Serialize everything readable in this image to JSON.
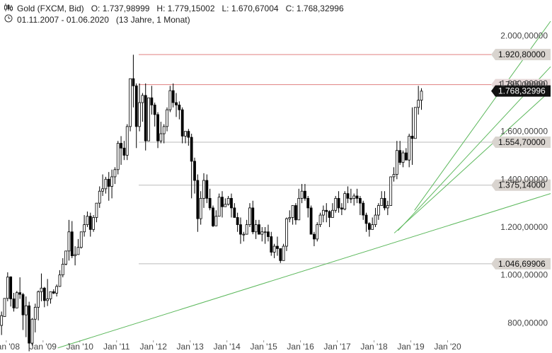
{
  "header": {
    "instrument": "Gold (FXCM, Bid)",
    "open": "O: 1.737,98999",
    "high": "H: 1.779,15002",
    "low": "L: 1.670,67004",
    "close": "C: 1.768,32996",
    "range": "01.11.2007 - 01.06.2020",
    "duration": "(13 Jahre, 1 Monat)"
  },
  "chart_data": {
    "type": "candlestick",
    "yaxis": {
      "ticks": [
        {
          "value": 800,
          "label": "800,00000"
        },
        {
          "value": 1000,
          "label": "1.000,00000"
        },
        {
          "value": 1200,
          "label": "1.200,00000"
        },
        {
          "value": 1400,
          "label": "1.400,00000"
        },
        {
          "value": 1600,
          "label": "1.600,00000"
        },
        {
          "value": 1800,
          "label": "1.800,00000"
        },
        {
          "value": 2000,
          "label": "2.000,00000"
        }
      ],
      "ylim": [
        730,
        2060
      ]
    },
    "xaxis": {
      "ticks": [
        {
          "value": 2008.0,
          "label": "Jan '08"
        },
        {
          "value": 2009.0,
          "label": "Jan '09"
        },
        {
          "value": 2010.0,
          "label": "Jan '10"
        },
        {
          "value": 2011.0,
          "label": "Jan '11"
        },
        {
          "value": 2012.0,
          "label": "Jan '12"
        },
        {
          "value": 2013.0,
          "label": "Jan '13"
        },
        {
          "value": 2014.0,
          "label": "Jan '14"
        },
        {
          "value": 2015.0,
          "label": "Jan '15"
        },
        {
          "value": 2016.0,
          "label": "Jan '16"
        },
        {
          "value": 2017.0,
          "label": "Jan '17"
        },
        {
          "value": 2018.0,
          "label": "Jan '18"
        },
        {
          "value": 2019.0,
          "label": "Jan '19"
        },
        {
          "value": 2020.0,
          "label": "Jan '20"
        }
      ],
      "xlim": [
        2007.83,
        2022.8
      ]
    },
    "price_levels": [
      {
        "value": 1920.8,
        "label": "1.920,80000",
        "color": "#e08080"
      },
      {
        "value": 1795.0,
        "label": "1.795,00000",
        "color": "#e08080"
      },
      {
        "value": 1554.7,
        "label": "1.554,70000",
        "color": "#bbbbbb"
      },
      {
        "value": 1375.14,
        "label": "1.375,14000",
        "color": "#bbbbbb"
      },
      {
        "value": 1046.69906,
        "label": "1.046,69906",
        "color": "#bbbbbb"
      }
    ],
    "current": {
      "value": 1768.32996,
      "label": "1.768,32996"
    },
    "trendlines": [
      {
        "x1": 2009.4,
        "y1": 695,
        "x2": 2022.8,
        "y2": 1340
      },
      {
        "x1": 2018.55,
        "y1": 1175,
        "x2": 2022.8,
        "y2": 1770
      },
      {
        "x1": 2018.65,
        "y1": 1185,
        "x2": 2022.8,
        "y2": 1870
      },
      {
        "x1": 2019.1,
        "y1": 1270,
        "x2": 2022.8,
        "y2": 2060
      }
    ],
    "series": [
      {
        "values": [
          [
            789,
            847,
            749,
            830
          ],
          [
            826,
            900,
            837,
            902
          ],
          [
            902,
            1011,
            890,
            991
          ],
          [
            992,
            994,
            868,
            900
          ],
          [
            900,
            925,
            847,
            862
          ],
          [
            862,
            933,
            902,
            926
          ],
          [
            926,
            990,
            900,
            919
          ],
          [
            918,
            925,
            770,
            833
          ],
          [
            833,
            910,
            740,
            871
          ],
          [
            871,
            888,
            681,
            715
          ],
          [
            715,
            820,
            705,
            815
          ],
          [
            815,
            880,
            760,
            865
          ],
          [
            865,
            935,
            810,
            930
          ],
          [
            930,
            1006,
            890,
            945
          ],
          [
            945,
            950,
            865,
            893
          ],
          [
            893,
            983,
            870,
            900
          ],
          [
            900,
            905,
            880,
            930
          ],
          [
            930,
            940,
            920,
            924
          ],
          [
            924,
            960,
            910,
            952
          ],
          [
            952,
            1020,
            950,
            1000
          ],
          [
            1000,
            1070,
            990,
            1045
          ],
          [
            1045,
            1100,
            1040,
            1100
          ],
          [
            1100,
            1230,
            1060,
            1180
          ],
          [
            1180,
            1225,
            1070,
            1080
          ],
          [
            1080,
            1120,
            1040,
            1085
          ],
          [
            1085,
            1150,
            1090,
            1115
          ],
          [
            1115,
            1180,
            1110,
            1180
          ],
          [
            1180,
            1250,
            1160,
            1210
          ],
          [
            1210,
            1265,
            1200,
            1245
          ],
          [
            1245,
            1260,
            1160,
            1190
          ],
          [
            1190,
            1250,
            1180,
            1240
          ],
          [
            1240,
            1300,
            1220,
            1300
          ],
          [
            1300,
            1370,
            1280,
            1350
          ],
          [
            1350,
            1420,
            1330,
            1360
          ],
          [
            1360,
            1410,
            1340,
            1400
          ],
          [
            1400,
            1430,
            1310,
            1370
          ],
          [
            1370,
            1440,
            1320,
            1410
          ],
          [
            1410,
            1450,
            1380,
            1440
          ],
          [
            1440,
            1560,
            1420,
            1550
          ],
          [
            1550,
            1580,
            1460,
            1530
          ],
          [
            1530,
            1560,
            1480,
            1500
          ],
          [
            1500,
            1630,
            1480,
            1620
          ],
          [
            1620,
            1810,
            1600,
            1820
          ],
          [
            1820,
            1920,
            1700,
            1790
          ],
          [
            1790,
            1800,
            1530,
            1620
          ],
          [
            1620,
            1800,
            1600,
            1720
          ],
          [
            1720,
            1760,
            1640,
            1750
          ],
          [
            1750,
            1800,
            1520,
            1560
          ],
          [
            1560,
            1740,
            1560,
            1740
          ],
          [
            1740,
            1790,
            1670,
            1710
          ],
          [
            1710,
            1720,
            1620,
            1670
          ],
          [
            1670,
            1680,
            1530,
            1560
          ],
          [
            1560,
            1640,
            1550,
            1590
          ],
          [
            1590,
            1630,
            1550,
            1620
          ],
          [
            1620,
            1700,
            1600,
            1690
          ],
          [
            1690,
            1790,
            1680,
            1770
          ],
          [
            1770,
            1800,
            1700,
            1720
          ],
          [
            1720,
            1760,
            1660,
            1710
          ],
          [
            1710,
            1725,
            1650,
            1690
          ],
          [
            1690,
            1700,
            1550,
            1580
          ],
          [
            1580,
            1600,
            1550,
            1600
          ],
          [
            1600,
            1610,
            1540,
            1575
          ],
          [
            1575,
            1590,
            1320,
            1475
          ],
          [
            1475,
            1490,
            1340,
            1395
          ],
          [
            1395,
            1420,
            1180,
            1235
          ],
          [
            1235,
            1350,
            1210,
            1320
          ],
          [
            1320,
            1425,
            1280,
            1395
          ],
          [
            1395,
            1420,
            1300,
            1320
          ],
          [
            1320,
            1360,
            1270,
            1280
          ],
          [
            1280,
            1290,
            1200,
            1205
          ],
          [
            1205,
            1270,
            1210,
            1245
          ],
          [
            1245,
            1340,
            1250,
            1325
          ],
          [
            1325,
            1350,
            1240,
            1285
          ],
          [
            1285,
            1320,
            1290,
            1295
          ],
          [
            1295,
            1330,
            1290,
            1320
          ],
          [
            1320,
            1340,
            1240,
            1280
          ],
          [
            1280,
            1300,
            1240,
            1240
          ],
          [
            1240,
            1260,
            1180,
            1210
          ],
          [
            1210,
            1240,
            1130,
            1170
          ],
          [
            1170,
            1180,
            1140,
            1170
          ],
          [
            1170,
            1230,
            1170,
            1210
          ],
          [
            1210,
            1300,
            1200,
            1280
          ],
          [
            1280,
            1310,
            1170,
            1180
          ],
          [
            1180,
            1230,
            1150,
            1210
          ],
          [
            1210,
            1230,
            1170,
            1170
          ],
          [
            1170,
            1200,
            1140,
            1180
          ],
          [
            1180,
            1200,
            1130,
            1180
          ],
          [
            1180,
            1210,
            1140,
            1160
          ],
          [
            1160,
            1180,
            1080,
            1095
          ],
          [
            1095,
            1130,
            1070,
            1120
          ],
          [
            1120,
            1160,
            1080,
            1110
          ],
          [
            1110,
            1100,
            1050,
            1060
          ],
          [
            1060,
            1130,
            1060,
            1120
          ],
          [
            1120,
            1240,
            1100,
            1235
          ],
          [
            1235,
            1270,
            1220,
            1240
          ],
          [
            1240,
            1280,
            1210,
            1290
          ],
          [
            1290,
            1300,
            1210,
            1230
          ],
          [
            1230,
            1360,
            1250,
            1320
          ],
          [
            1320,
            1380,
            1300,
            1350
          ],
          [
            1350,
            1380,
            1310,
            1320
          ],
          [
            1320,
            1330,
            1240,
            1280
          ],
          [
            1280,
            1290,
            1170,
            1170
          ],
          [
            1170,
            1180,
            1120,
            1150
          ],
          [
            1150,
            1220,
            1140,
            1210
          ],
          [
            1210,
            1260,
            1200,
            1250
          ],
          [
            1250,
            1290,
            1220,
            1270
          ],
          [
            1270,
            1300,
            1220,
            1265
          ],
          [
            1265,
            1270,
            1200,
            1240
          ],
          [
            1240,
            1300,
            1240,
            1270
          ],
          [
            1270,
            1330,
            1260,
            1320
          ],
          [
            1320,
            1350,
            1260,
            1280
          ],
          [
            1280,
            1300,
            1250,
            1275
          ],
          [
            1275,
            1350,
            1270,
            1340
          ],
          [
            1340,
            1370,
            1300,
            1320
          ],
          [
            1320,
            1360,
            1300,
            1320
          ],
          [
            1320,
            1340,
            1290,
            1330
          ],
          [
            1330,
            1360,
            1300,
            1320
          ],
          [
            1320,
            1330,
            1250,
            1300
          ],
          [
            1300,
            1310,
            1230,
            1250
          ],
          [
            1250,
            1260,
            1180,
            1215
          ],
          [
            1215,
            1220,
            1160,
            1190
          ],
          [
            1190,
            1240,
            1190,
            1210
          ],
          [
            1210,
            1280,
            1200,
            1250
          ],
          [
            1250,
            1300,
            1230,
            1290
          ],
          [
            1290,
            1350,
            1290,
            1320
          ],
          [
            1320,
            1350,
            1270,
            1280
          ],
          [
            1280,
            1310,
            1250,
            1290
          ],
          [
            1290,
            1360,
            1300,
            1410
          ],
          [
            1410,
            1450,
            1390,
            1420
          ],
          [
            1420,
            1560,
            1400,
            1520
          ],
          [
            1520,
            1560,
            1460,
            1470
          ],
          [
            1470,
            1520,
            1450,
            1510
          ],
          [
            1510,
            1530,
            1480,
            1480
          ],
          [
            1480,
            1590,
            1450,
            1580
          ],
          [
            1580,
            1700,
            1460,
            1570
          ],
          [
            1570,
            1600,
            1570,
            1700
          ],
          [
            1700,
            1790,
            1670,
            1730
          ],
          [
            1730,
            1780,
            1690,
            1768
          ]
        ]
      }
    ]
  }
}
